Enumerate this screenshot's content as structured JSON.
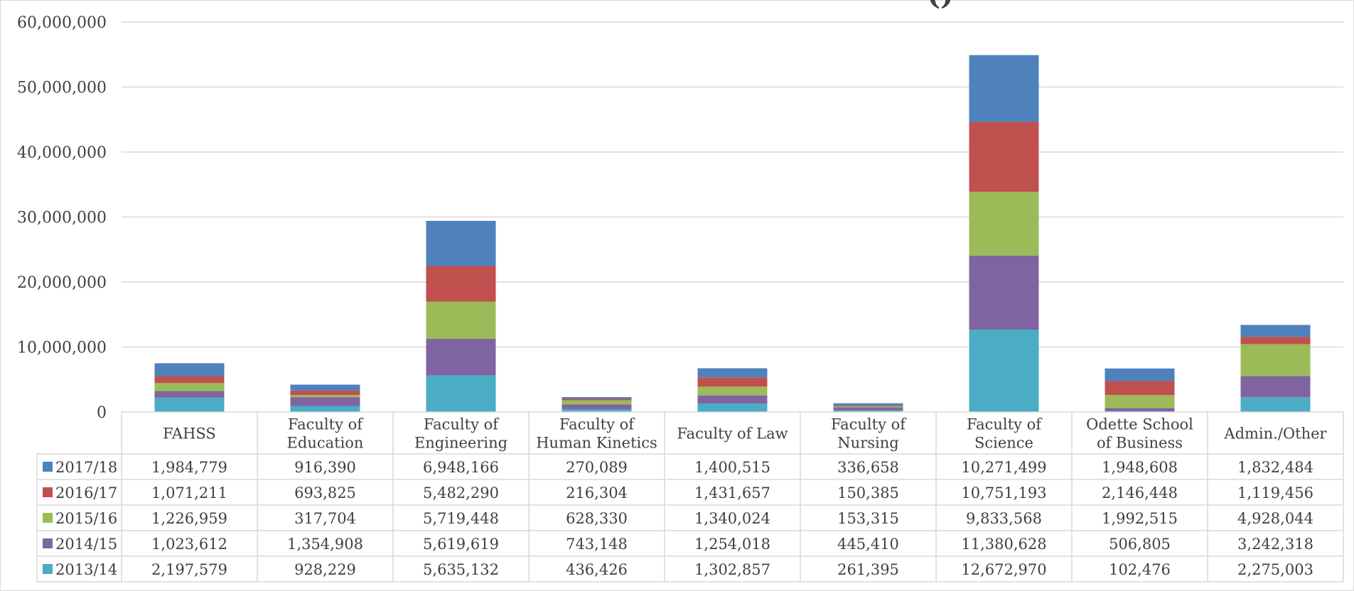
{
  "chart_data": {
    "type": "bar",
    "stacked": true,
    "title_fragment": "()",
    "ylim": [
      0,
      60000000
    ],
    "y_ticks": [
      "0",
      "10,000,000",
      "20,000,000",
      "30,000,000",
      "40,000,000",
      "50,000,000",
      "60,000,000"
    ],
    "grid": true,
    "legend_placement": "data-table-left",
    "categories": [
      [
        "FAHSS"
      ],
      [
        "Faculty of",
        "Education"
      ],
      [
        "Faculty of",
        "Engineering"
      ],
      [
        "Faculty of",
        "Human Kinetics"
      ],
      [
        "Faculty of Law"
      ],
      [
        "Faculty of",
        "Nursing"
      ],
      [
        "Faculty of",
        "Science"
      ],
      [
        "Odette School",
        "of Business"
      ],
      [
        "Admin./Other"
      ]
    ],
    "series": [
      {
        "name": "2013/14",
        "color": "#4bacc6",
        "values": [
          2197579,
          928229,
          5635132,
          436426,
          1302857,
          261395,
          12672970,
          102476,
          2275003
        ],
        "labels": [
          "2,197,579",
          "928,229",
          "5,635,132",
          "436,426",
          "1,302,857",
          "261,395",
          "12,672,970",
          "102,476",
          "2,275,003"
        ]
      },
      {
        "name": "2014/15",
        "color": "#8064a2",
        "values": [
          1023612,
          1354908,
          5619619,
          743148,
          1254018,
          445410,
          11380628,
          506805,
          3242318
        ],
        "labels": [
          "1,023,612",
          "1,354,908",
          "5,619,619",
          "743,148",
          "1,254,018",
          "445,410",
          "11,380,628",
          "506,805",
          "3,242,318"
        ]
      },
      {
        "name": "2015/16",
        "color": "#9bbb59",
        "values": [
          1226959,
          317704,
          5719448,
          628330,
          1340024,
          153315,
          9833568,
          1992515,
          4928044
        ],
        "labels": [
          "1,226,959",
          "317,704",
          "5,719,448",
          "628,330",
          "1,340,024",
          "153,315",
          "9,833,568",
          "1,992,515",
          "4,928,044"
        ]
      },
      {
        "name": "2016/17",
        "color": "#c0504d",
        "values": [
          1071211,
          693825,
          5482290,
          216304,
          1431657,
          150385,
          10751193,
          2146448,
          1119456
        ],
        "labels": [
          "1,071,211",
          "693,825",
          "5,482,290",
          "216,304",
          "1,431,657",
          "150,385",
          "10,751,193",
          "2,146,448",
          "1,119,456"
        ]
      },
      {
        "name": "2017/18",
        "color": "#4f81bd",
        "values": [
          1984779,
          916390,
          6948166,
          270089,
          1400515,
          336658,
          10271499,
          1948608,
          1832484
        ],
        "labels": [
          "1,984,779",
          "916,390",
          "6,948,166",
          "270,089",
          "1,400,515",
          "336,658",
          "10,271,499",
          "1,948,608",
          "1,832,484"
        ]
      }
    ]
  }
}
